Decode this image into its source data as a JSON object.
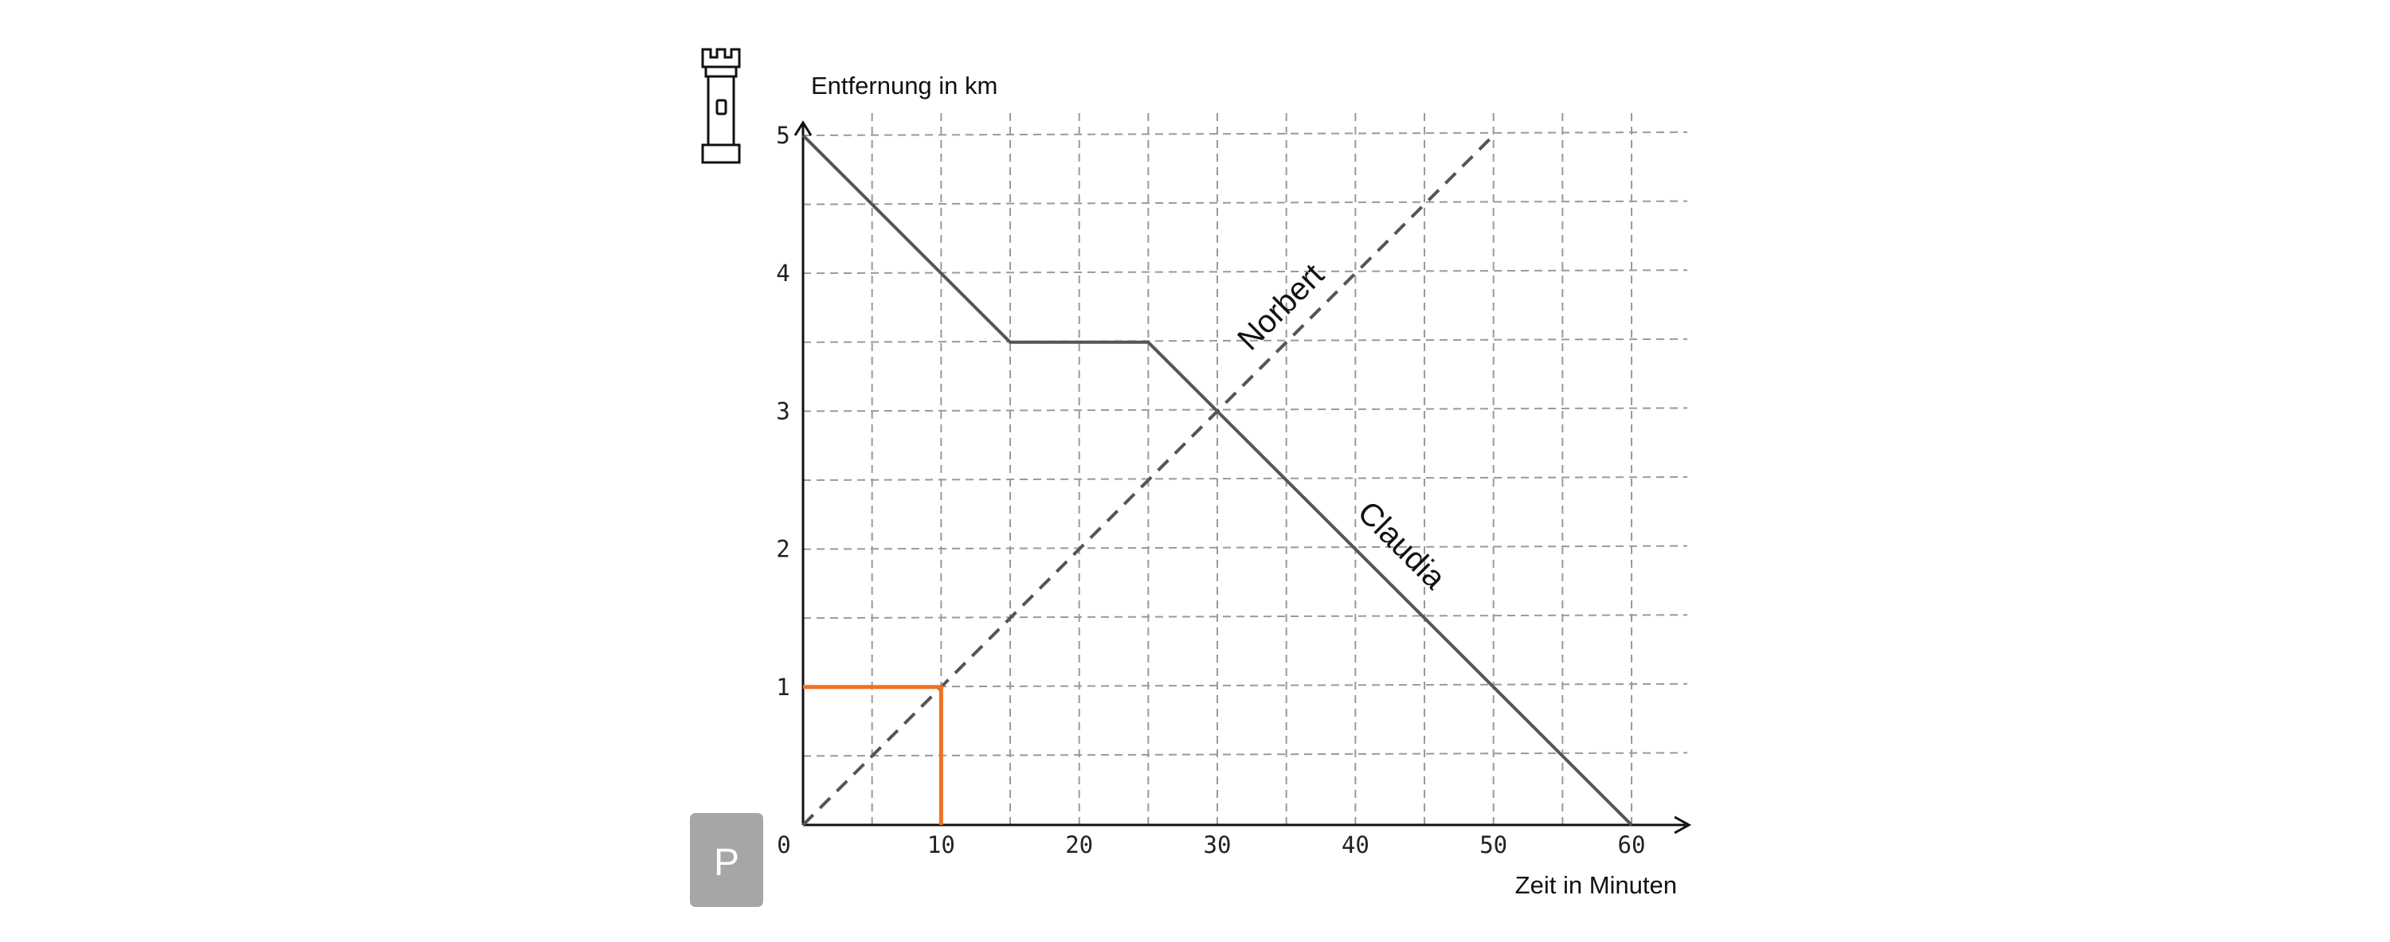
{
  "icons": {
    "top_left": "tower-icon"
  },
  "parking_sign": {
    "label": "P",
    "color": "#a6a6a6"
  },
  "chart_data": {
    "type": "line",
    "title": "",
    "xlabel": "Zeit in Minuten",
    "ylabel": "Entfernung in km",
    "xlim": [
      0,
      60
    ],
    "ylim": [
      0,
      5
    ],
    "x_ticks": [
      "0",
      "10",
      "20",
      "30",
      "40",
      "50",
      "60"
    ],
    "y_ticks": [
      "1",
      "2",
      "3",
      "4",
      "5"
    ],
    "grid": true,
    "grid_style": "dashed",
    "series": [
      {
        "name": "Claudia",
        "style": "solid",
        "color": "#555555",
        "points": [
          [
            0,
            5
          ],
          [
            15,
            3.5
          ],
          [
            25,
            3.5
          ],
          [
            60,
            0
          ]
        ]
      },
      {
        "name": "Norbert",
        "style": "dashed",
        "color": "#555555",
        "points": [
          [
            0,
            0
          ],
          [
            50,
            5
          ]
        ]
      }
    ],
    "highlight": {
      "color": "#f07020",
      "points": [
        [
          0,
          1
        ],
        [
          10,
          1
        ],
        [
          10,
          0
        ]
      ]
    }
  }
}
